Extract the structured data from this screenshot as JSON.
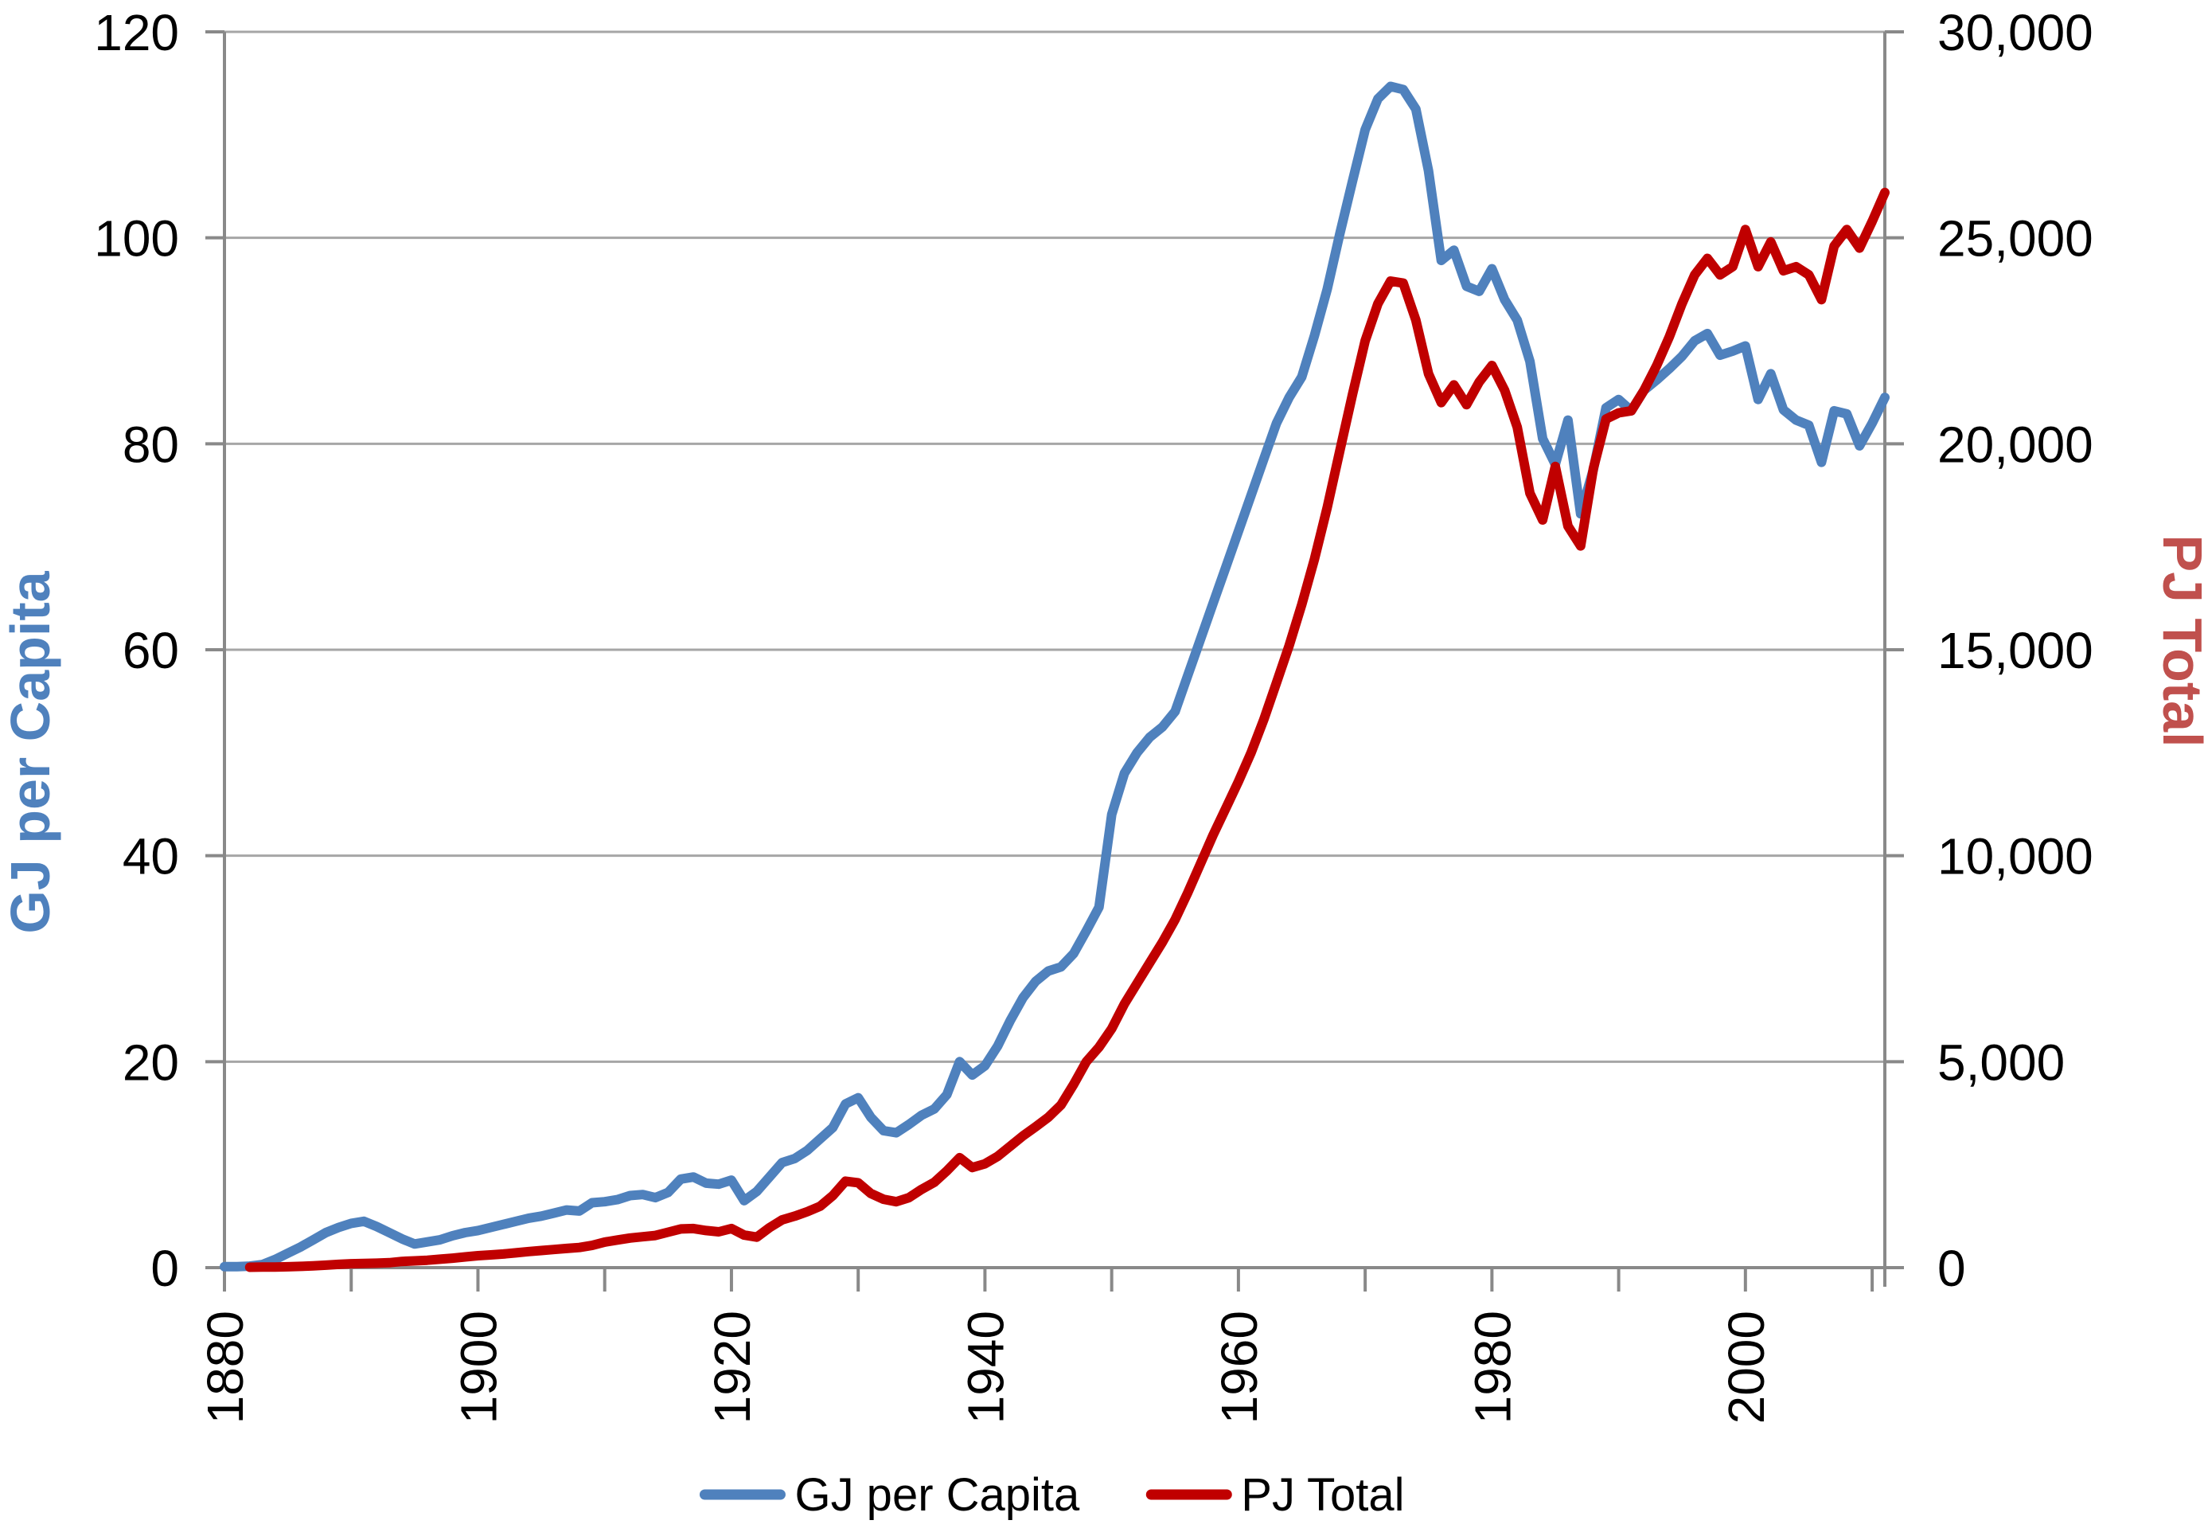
{
  "chart_data": {
    "type": "line",
    "title": "",
    "x_axis": {
      "min": 1880,
      "max": 2011,
      "tick_step": 10,
      "label_step": 20,
      "tick_labels": [
        "1880",
        "1900",
        "1920",
        "1940",
        "1960",
        "1980",
        "2000"
      ]
    },
    "left_axis": {
      "title": "GJ per Capita",
      "color": "#4F81BD",
      "min": 0,
      "max": 120,
      "tick_step": 20,
      "tick_labels": [
        "0",
        "20",
        "40",
        "60",
        "80",
        "100",
        "120"
      ]
    },
    "right_axis": {
      "title": "PJ Total",
      "color": "#C0504D",
      "min": 0,
      "max": 30000,
      "tick_step": 5000,
      "tick_labels": [
        "0",
        "5,000",
        "10,000",
        "15,000",
        "20,000",
        "25,000",
        "30,000"
      ]
    },
    "grid": {
      "color": "#A6A6A6",
      "axis_color": "#898989"
    },
    "legend": {
      "items": [
        {
          "label": "GJ per Capita",
          "color": "#4F81BD"
        },
        {
          "label": "PJ Total",
          "color": "#C00000"
        }
      ]
    },
    "series": [
      {
        "name": "GJ per Capita",
        "axis": "left",
        "color": "#4F81BD",
        "points": [
          [
            1880,
            0.1
          ],
          [
            1881,
            0.1
          ],
          [
            1882,
            0.15
          ],
          [
            1883,
            0.3
          ],
          [
            1884,
            0.8
          ],
          [
            1885,
            1.4
          ],
          [
            1886,
            2.0
          ],
          [
            1887,
            2.7
          ],
          [
            1888,
            3.4
          ],
          [
            1889,
            3.9
          ],
          [
            1890,
            4.3
          ],
          [
            1891,
            4.5
          ],
          [
            1892,
            4.0
          ],
          [
            1893,
            3.4
          ],
          [
            1894,
            2.8
          ],
          [
            1895,
            2.3
          ],
          [
            1896,
            2.5
          ],
          [
            1897,
            2.7
          ],
          [
            1898,
            3.1
          ],
          [
            1899,
            3.4
          ],
          [
            1900,
            3.6
          ],
          [
            1901,
            3.9
          ],
          [
            1902,
            4.2
          ],
          [
            1903,
            4.5
          ],
          [
            1904,
            4.8
          ],
          [
            1905,
            5.0
          ],
          [
            1906,
            5.3
          ],
          [
            1907,
            5.6
          ],
          [
            1908,
            5.5
          ],
          [
            1909,
            6.3
          ],
          [
            1910,
            6.4
          ],
          [
            1911,
            6.6
          ],
          [
            1912,
            7.0
          ],
          [
            1913,
            7.1
          ],
          [
            1914,
            6.8
          ],
          [
            1915,
            7.3
          ],
          [
            1916,
            8.6
          ],
          [
            1917,
            8.8
          ],
          [
            1918,
            8.2
          ],
          [
            1919,
            8.1
          ],
          [
            1920,
            8.5
          ],
          [
            1921,
            6.5
          ],
          [
            1922,
            7.4
          ],
          [
            1923,
            8.8
          ],
          [
            1924,
            10.2
          ],
          [
            1925,
            10.6
          ],
          [
            1926,
            11.4
          ],
          [
            1927,
            12.5
          ],
          [
            1928,
            13.6
          ],
          [
            1929,
            15.9
          ],
          [
            1930,
            16.5
          ],
          [
            1931,
            14.6
          ],
          [
            1932,
            13.3
          ],
          [
            1933,
            13.1
          ],
          [
            1934,
            13.9
          ],
          [
            1935,
            14.8
          ],
          [
            1936,
            15.4
          ],
          [
            1937,
            16.8
          ],
          [
            1938,
            20.0
          ],
          [
            1939,
            18.7
          ],
          [
            1940,
            19.6
          ],
          [
            1941,
            21.5
          ],
          [
            1942,
            24.0
          ],
          [
            1943,
            26.2
          ],
          [
            1944,
            27.8
          ],
          [
            1945,
            28.8
          ],
          [
            1946,
            29.2
          ],
          [
            1947,
            30.5
          ],
          [
            1948,
            32.7
          ],
          [
            1949,
            35.0
          ],
          [
            1950,
            44.0
          ],
          [
            1951,
            48.0
          ],
          [
            1952,
            50.0
          ],
          [
            1953,
            51.5
          ],
          [
            1954,
            52.5
          ],
          [
            1955,
            54.0
          ],
          [
            1956,
            57.5
          ],
          [
            1957,
            61.0
          ],
          [
            1958,
            64.5
          ],
          [
            1959,
            68.0
          ],
          [
            1960,
            71.5
          ],
          [
            1961,
            75.0
          ],
          [
            1962,
            78.5
          ],
          [
            1963,
            82.0
          ],
          [
            1964,
            84.5
          ],
          [
            1965,
            86.5
          ],
          [
            1966,
            90.5
          ],
          [
            1967,
            95.0
          ],
          [
            1968,
            100.4
          ],
          [
            1969,
            105.5
          ],
          [
            1970,
            110.5
          ],
          [
            1971,
            113.5
          ],
          [
            1972,
            114.7
          ],
          [
            1973,
            114.4
          ],
          [
            1974,
            112.5
          ],
          [
            1975,
            106.5
          ],
          [
            1976,
            97.8
          ],
          [
            1977,
            98.8
          ],
          [
            1978,
            95.3
          ],
          [
            1979,
            94.8
          ],
          [
            1980,
            97.0
          ],
          [
            1981,
            94.0
          ],
          [
            1982,
            92.0
          ],
          [
            1983,
            88.0
          ],
          [
            1984,
            80.5
          ],
          [
            1985,
            78.0
          ],
          [
            1986,
            82.3
          ],
          [
            1987,
            73.2
          ],
          [
            1988,
            77.5
          ],
          [
            1989,
            83.5
          ],
          [
            1990,
            84.3
          ],
          [
            1991,
            83.2
          ],
          [
            1992,
            85.2
          ],
          [
            1993,
            86.2
          ],
          [
            1994,
            87.3
          ],
          [
            1995,
            88.5
          ],
          [
            1996,
            90.0
          ],
          [
            1997,
            90.7
          ],
          [
            1998,
            88.6
          ],
          [
            1999,
            89.0
          ],
          [
            2000,
            89.5
          ],
          [
            2001,
            84.3
          ],
          [
            2002,
            86.8
          ],
          [
            2003,
            83.3
          ],
          [
            2004,
            82.3
          ],
          [
            2005,
            81.8
          ],
          [
            2006,
            78.2
          ],
          [
            2007,
            83.2
          ],
          [
            2008,
            82.9
          ],
          [
            2009,
            79.8
          ],
          [
            2010,
            82.0
          ],
          [
            2011,
            84.5
          ]
        ]
      },
      {
        "name": "PJ Total",
        "axis": "right",
        "color": "#C00000",
        "points": [
          [
            1882,
            10
          ],
          [
            1883,
            13
          ],
          [
            1884,
            16
          ],
          [
            1885,
            22
          ],
          [
            1886,
            30
          ],
          [
            1887,
            45
          ],
          [
            1888,
            60
          ],
          [
            1889,
            80
          ],
          [
            1890,
            95
          ],
          [
            1891,
            100
          ],
          [
            1892,
            108
          ],
          [
            1893,
            120
          ],
          [
            1894,
            150
          ],
          [
            1895,
            165
          ],
          [
            1896,
            180
          ],
          [
            1897,
            205
          ],
          [
            1898,
            230
          ],
          [
            1899,
            260
          ],
          [
            1900,
            290
          ],
          [
            1901,
            310
          ],
          [
            1902,
            330
          ],
          [
            1903,
            360
          ],
          [
            1904,
            390
          ],
          [
            1905,
            415
          ],
          [
            1906,
            440
          ],
          [
            1907,
            465
          ],
          [
            1908,
            490
          ],
          [
            1909,
            540
          ],
          [
            1910,
            620
          ],
          [
            1911,
            670
          ],
          [
            1912,
            720
          ],
          [
            1913,
            750
          ],
          [
            1914,
            780
          ],
          [
            1915,
            860
          ],
          [
            1916,
            940
          ],
          [
            1917,
            950
          ],
          [
            1918,
            900
          ],
          [
            1919,
            870
          ],
          [
            1920,
            950
          ],
          [
            1921,
            790
          ],
          [
            1922,
            740
          ],
          [
            1923,
            970
          ],
          [
            1924,
            1160
          ],
          [
            1925,
            1250
          ],
          [
            1926,
            1360
          ],
          [
            1927,
            1490
          ],
          [
            1928,
            1750
          ],
          [
            1929,
            2100
          ],
          [
            1930,
            2060
          ],
          [
            1931,
            1800
          ],
          [
            1932,
            1660
          ],
          [
            1933,
            1600
          ],
          [
            1934,
            1700
          ],
          [
            1935,
            1900
          ],
          [
            1936,
            2070
          ],
          [
            1937,
            2350
          ],
          [
            1938,
            2670
          ],
          [
            1939,
            2430
          ],
          [
            1940,
            2520
          ],
          [
            1941,
            2700
          ],
          [
            1942,
            2950
          ],
          [
            1943,
            3200
          ],
          [
            1944,
            3420
          ],
          [
            1945,
            3650
          ],
          [
            1946,
            3950
          ],
          [
            1947,
            4450
          ],
          [
            1948,
            5000
          ],
          [
            1949,
            5350
          ],
          [
            1950,
            5800
          ],
          [
            1951,
            6400
          ],
          [
            1952,
            6900
          ],
          [
            1953,
            7400
          ],
          [
            1954,
            7900
          ],
          [
            1955,
            8450
          ],
          [
            1956,
            9100
          ],
          [
            1957,
            9800
          ],
          [
            1958,
            10500
          ],
          [
            1959,
            11150
          ],
          [
            1960,
            11800
          ],
          [
            1961,
            12500
          ],
          [
            1962,
            13300
          ],
          [
            1963,
            14200
          ],
          [
            1964,
            15100
          ],
          [
            1965,
            16100
          ],
          [
            1966,
            17200
          ],
          [
            1967,
            18450
          ],
          [
            1968,
            19830
          ],
          [
            1969,
            21200
          ],
          [
            1970,
            22500
          ],
          [
            1971,
            23400
          ],
          [
            1972,
            23950
          ],
          [
            1973,
            23900
          ],
          [
            1974,
            23000
          ],
          [
            1975,
            21700
          ],
          [
            1976,
            21000
          ],
          [
            1977,
            21430
          ],
          [
            1978,
            20950
          ],
          [
            1979,
            21500
          ],
          [
            1980,
            21900
          ],
          [
            1981,
            21300
          ],
          [
            1982,
            20400
          ],
          [
            1983,
            18800
          ],
          [
            1984,
            18150
          ],
          [
            1985,
            19450
          ],
          [
            1986,
            18000
          ],
          [
            1987,
            17520
          ],
          [
            1988,
            19400
          ],
          [
            1989,
            20600
          ],
          [
            1990,
            20750
          ],
          [
            1991,
            20800
          ],
          [
            1992,
            21300
          ],
          [
            1993,
            21900
          ],
          [
            1994,
            22600
          ],
          [
            1995,
            23400
          ],
          [
            1996,
            24100
          ],
          [
            1997,
            24500
          ],
          [
            1998,
            24100
          ],
          [
            1999,
            24300
          ],
          [
            2000,
            25200
          ],
          [
            2001,
            24300
          ],
          [
            2002,
            24900
          ],
          [
            2003,
            24200
          ],
          [
            2004,
            24300
          ],
          [
            2005,
            24100
          ],
          [
            2006,
            23500
          ],
          [
            2007,
            24800
          ],
          [
            2008,
            25200
          ],
          [
            2009,
            24750
          ],
          [
            2010,
            25400
          ],
          [
            2011,
            26100
          ]
        ]
      }
    ]
  }
}
